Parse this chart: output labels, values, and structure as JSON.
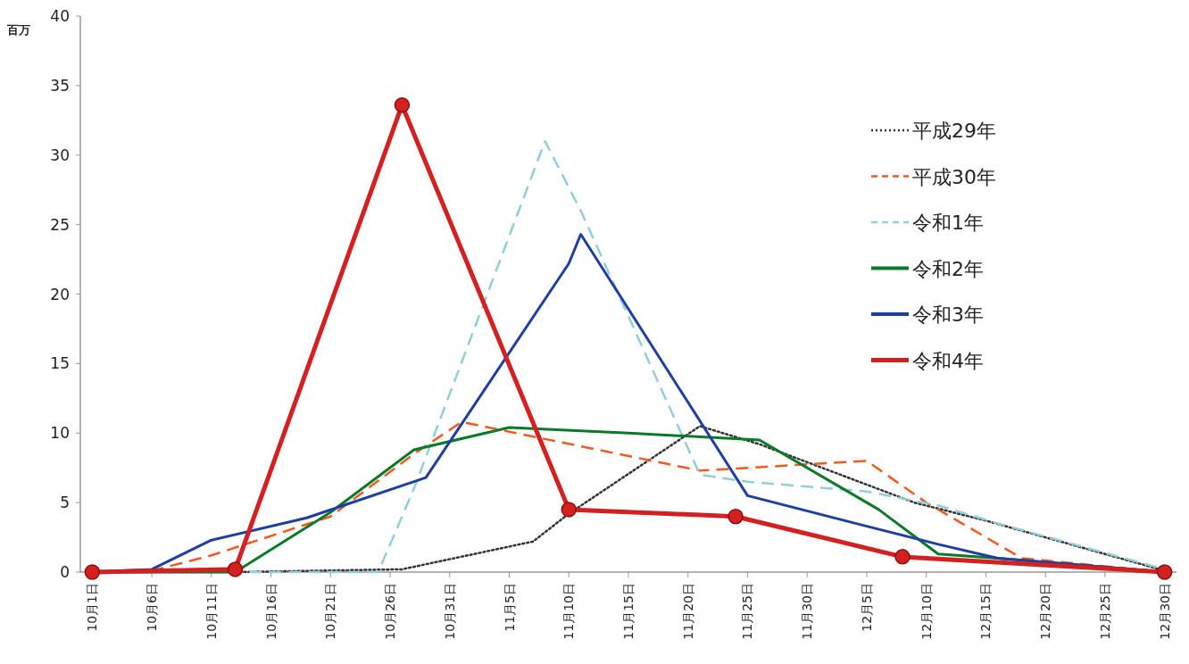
{
  "chart_data": {
    "type": "line",
    "ylabel": "百万",
    "xlim": [
      "--09-30",
      "--12-31"
    ],
    "ylim": [
      0,
      40
    ],
    "yticks": [
      0,
      5,
      10,
      15,
      20,
      25,
      30,
      35,
      40
    ],
    "xticks": [
      {
        "value": "--10-01",
        "label": "10月1日"
      },
      {
        "value": "--10-06",
        "label": "10月6日"
      },
      {
        "value": "--10-11",
        "label": "10月11日"
      },
      {
        "value": "--10-16",
        "label": "10月16日"
      },
      {
        "value": "--10-21",
        "label": "10月21日"
      },
      {
        "value": "--10-26",
        "label": "10月26日"
      },
      {
        "value": "--10-31",
        "label": "10月31日"
      },
      {
        "value": "--11-05",
        "label": "11月5日"
      },
      {
        "value": "--11-10",
        "label": "11月10日"
      },
      {
        "value": "--11-15",
        "label": "11月15日"
      },
      {
        "value": "--11-20",
        "label": "11月20日"
      },
      {
        "value": "--11-25",
        "label": "11月25日"
      },
      {
        "value": "--11-30",
        "label": "11月30日"
      },
      {
        "value": "--12-05",
        "label": "12月5日"
      },
      {
        "value": "--12-10",
        "label": "12月10日"
      },
      {
        "value": "--12-15",
        "label": "12月15日"
      },
      {
        "value": "--12-20",
        "label": "12月20日"
      },
      {
        "value": "--12-25",
        "label": "12月25日"
      },
      {
        "value": "--12-30",
        "label": "12月30日"
      }
    ],
    "legend": "top right",
    "grid": false,
    "series": [
      {
        "name": "平成29年",
        "color": "#333333",
        "line_style": "dotted",
        "marker": "none",
        "x": [
          "--10-01",
          "--10-13",
          "--10-27",
          "--11-07",
          "--11-10",
          "--11-21",
          "--11-26",
          "--12-09",
          "--12-15",
          "--12-25",
          "--12-30"
        ],
        "values": [
          0,
          0,
          0.2,
          2.2,
          4.2,
          10.5,
          9.2,
          5,
          3.7,
          1.3,
          0.1
        ]
      },
      {
        "name": "平成30年",
        "color": "#f05a22",
        "line_style": "dashed",
        "marker": "none",
        "x": [
          "--10-01",
          "--10-06",
          "--10-11",
          "--10-21",
          "--10-28",
          "--11-01",
          "--11-05",
          "--11-21",
          "--12-01",
          "--12-05",
          "--12-10",
          "--12-18",
          "--12-30"
        ],
        "values": [
          0,
          0.1,
          1.2,
          4,
          8.5,
          10.8,
          10.1,
          7.3,
          7.8,
          8,
          5,
          1.0,
          0
        ]
      },
      {
        "name": "令和1年",
        "color": "#92cddc",
        "line_style": "dashed",
        "marker": "none",
        "x": [
          "--10-01",
          "--10-25",
          "--10-28",
          "--11-08",
          "--11-11",
          "--11-21",
          "--11-25",
          "--12-05",
          "--12-11",
          "--12-16",
          "--12-30"
        ],
        "values": [
          0,
          0,
          6,
          31,
          26,
          7,
          6.5,
          5.8,
          4.8,
          3.5,
          0.2
        ]
      },
      {
        "name": "令和2年",
        "color": "#0a7a2a",
        "line_style": "solid",
        "marker": "none",
        "x": [
          "--10-01",
          "--10-06",
          "--10-13",
          "--10-21",
          "--10-28",
          "--11-05",
          "--11-15",
          "--11-26",
          "--12-06",
          "--12-11",
          "--12-16",
          "--12-30"
        ],
        "values": [
          0,
          0,
          0,
          4.3,
          8.8,
          10.4,
          10,
          9.5,
          4.5,
          1.3,
          1.0,
          0
        ]
      },
      {
        "name": "令和3年",
        "color": "#1f3fa0",
        "line_style": "solid",
        "marker": "none",
        "x": [
          "--10-01",
          "--10-06",
          "--10-11",
          "--10-19",
          "--10-29",
          "--11-10",
          "--11-11",
          "--11-25",
          "--12-05",
          "--12-11",
          "--12-16",
          "--12-30"
        ],
        "values": [
          0,
          0.2,
          2.3,
          3.9,
          6.8,
          22.2,
          24.3,
          5.5,
          3.3,
          2.0,
          1.0,
          0
        ]
      },
      {
        "name": "令和4年",
        "color": "#d42020",
        "line_style": "solid",
        "marker": "circle",
        "x": [
          "--10-01",
          "--10-13",
          "--10-27",
          "--11-10",
          "--11-24",
          "--12-08",
          "--12-30"
        ],
        "values": [
          0,
          0.2,
          33.6,
          4.5,
          4.0,
          1.1,
          0
        ]
      }
    ]
  }
}
